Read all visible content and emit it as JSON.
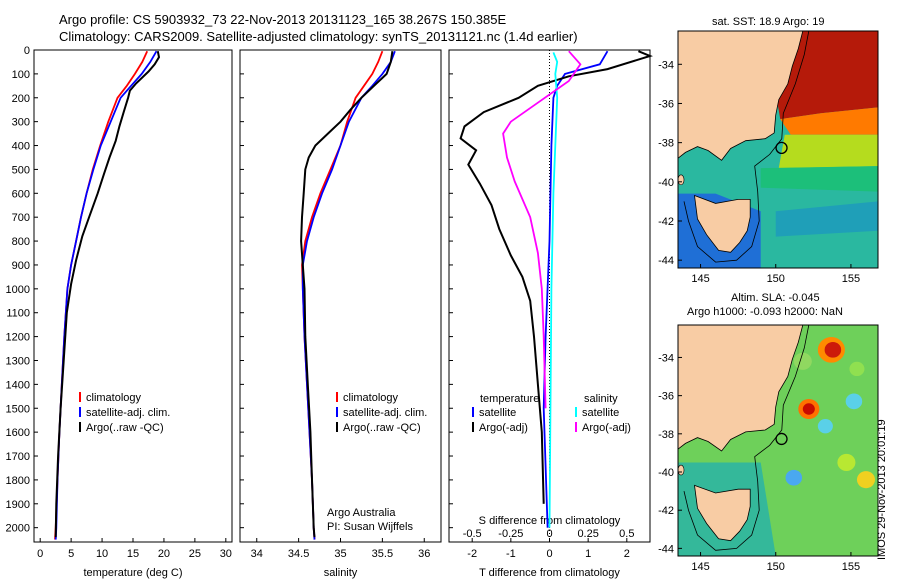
{
  "title": {
    "line1": "Argo profile: CS 5903932_73 22-Nov-2013 20131123_165 38.267S 150.385E",
    "line2": "Climatology: CARS2009. Satellite-adjusted climatology: synTS_20131121.nc (1.4d earlier)"
  },
  "footer_vertical": "IMOS 29-Nov-2013 20:01:19",
  "chart_data": [
    {
      "type": "line",
      "panel": "temperature",
      "xlabel": "temperature (deg C)",
      "ylabel": "",
      "xlim": [
        -1,
        31
      ],
      "ylim": [
        2060,
        0
      ],
      "xticks": [
        "0",
        "5",
        "10",
        "15",
        "20",
        "25",
        "30"
      ],
      "yticks": [
        "0",
        "100",
        "200",
        "300",
        "400",
        "500",
        "600",
        "700",
        "800",
        "900",
        "1000",
        "1100",
        "1200",
        "1300",
        "1400",
        "1500",
        "1600",
        "1700",
        "1800",
        "1900",
        "2000"
      ],
      "legend": [
        "climatology",
        "satellite-adj. clim.",
        "Argo(..raw -QC)"
      ],
      "colors": {
        "climatology": "#ff0000",
        "satellite": "#0000ff",
        "argo": "#000000"
      },
      "series": [
        {
          "name": "climatology",
          "points": [
            [
              17.3,
              5
            ],
            [
              16.5,
              50
            ],
            [
              15.3,
              100
            ],
            [
              14,
              150
            ],
            [
              12.5,
              200
            ],
            [
              11,
              300
            ],
            [
              9.7,
              400
            ],
            [
              8.5,
              500
            ],
            [
              7.5,
              600
            ],
            [
              6.6,
              700
            ],
            [
              5.8,
              800
            ],
            [
              5,
              900
            ],
            [
              4.4,
              1000
            ],
            [
              3.9,
              1200
            ],
            [
              3.5,
              1400
            ],
            [
              3.1,
              1600
            ],
            [
              2.8,
              1800
            ],
            [
              2.5,
              2000
            ],
            [
              2.4,
              2050
            ]
          ]
        },
        {
          "name": "satellite-adj. clim.",
          "points": [
            [
              18.8,
              5
            ],
            [
              17.8,
              50
            ],
            [
              16.4,
              100
            ],
            [
              14.7,
              150
            ],
            [
              13,
              200
            ],
            [
              11.4,
              300
            ],
            [
              9.8,
              400
            ],
            [
              8.6,
              500
            ],
            [
              7.5,
              600
            ],
            [
              6.6,
              700
            ],
            [
              5.8,
              800
            ],
            [
              5,
              900
            ],
            [
              4.4,
              1000
            ],
            [
              3.9,
              1200
            ],
            [
              3.5,
              1400
            ],
            [
              3.1,
              1600
            ],
            [
              2.8,
              1800
            ],
            [
              2.6,
              2000
            ],
            [
              2.5,
              2050
            ]
          ]
        },
        {
          "name": "Argo(..raw -QC)",
          "points": [
            [
              19,
              5
            ],
            [
              19.2,
              30
            ],
            [
              18.5,
              60
            ],
            [
              17.5,
              90
            ],
            [
              15.5,
              140
            ],
            [
              14.5,
              170
            ],
            [
              14.2,
              200
            ],
            [
              13.5,
              260
            ],
            [
              12.8,
              320
            ],
            [
              12.2,
              380
            ],
            [
              11.2,
              450
            ],
            [
              10.3,
              520
            ],
            [
              9.3,
              600
            ],
            [
              7.9,
              700
            ],
            [
              6.8,
              780
            ],
            [
              5.8,
              880
            ],
            [
              5,
              980
            ],
            [
              4.3,
              1100
            ],
            [
              3.8,
              1300
            ],
            [
              3.3,
              1500
            ],
            [
              2.9,
              1700
            ],
            [
              2.6,
              1900
            ],
            [
              2.5,
              2040
            ]
          ]
        }
      ]
    },
    {
      "type": "line",
      "panel": "salinity",
      "xlabel": "salinity",
      "xlim": [
        33.8,
        36.2
      ],
      "ylim": [
        2060,
        0
      ],
      "xticks": [
        "34",
        "34.5",
        "35",
        "35.5",
        "36"
      ],
      "legend": [
        "climatology",
        "satellite-adj. clim.",
        "Argo(..raw -QC)"
      ],
      "annotation": [
        "Argo Australia",
        "PI: Susan Wijffels"
      ],
      "series": [
        {
          "name": "climatology",
          "points": [
            [
              35.5,
              5
            ],
            [
              35.45,
              50
            ],
            [
              35.38,
              100
            ],
            [
              35.28,
              150
            ],
            [
              35.18,
              200
            ],
            [
              35.08,
              300
            ],
            [
              35,
              400
            ],
            [
              34.88,
              500
            ],
            [
              34.76,
              600
            ],
            [
              34.66,
              700
            ],
            [
              34.58,
              800
            ],
            [
              34.54,
              900
            ],
            [
              34.55,
              1000
            ],
            [
              34.57,
              1200
            ],
            [
              34.6,
              1400
            ],
            [
              34.63,
              1600
            ],
            [
              34.66,
              1800
            ],
            [
              34.68,
              2000
            ],
            [
              34.69,
              2050
            ]
          ]
        },
        {
          "name": "satellite-adj. clim.",
          "points": [
            [
              35.65,
              5
            ],
            [
              35.6,
              50
            ],
            [
              35.5,
              100
            ],
            [
              35.38,
              150
            ],
            [
              35.25,
              200
            ],
            [
              35.1,
              300
            ],
            [
              35,
              400
            ],
            [
              34.9,
              500
            ],
            [
              34.78,
              600
            ],
            [
              34.68,
              700
            ],
            [
              34.6,
              800
            ],
            [
              34.55,
              900
            ],
            [
              34.55,
              1000
            ],
            [
              34.57,
              1200
            ],
            [
              34.6,
              1400
            ],
            [
              34.63,
              1600
            ],
            [
              34.66,
              1800
            ],
            [
              34.68,
              2000
            ],
            [
              34.69,
              2050
            ]
          ]
        },
        {
          "name": "Argo(..raw -QC)",
          "points": [
            [
              35.62,
              5
            ],
            [
              35.6,
              50
            ],
            [
              35.55,
              100
            ],
            [
              35.4,
              150
            ],
            [
              35.25,
              200
            ],
            [
              35.12,
              250
            ],
            [
              35.0,
              300
            ],
            [
              34.85,
              350
            ],
            [
              34.7,
              400
            ],
            [
              34.62,
              450
            ],
            [
              34.58,
              500
            ],
            [
              34.56,
              600
            ],
            [
              34.54,
              700
            ],
            [
              34.53,
              800
            ],
            [
              34.55,
              900
            ],
            [
              34.57,
              1000
            ],
            [
              34.58,
              1200
            ],
            [
              34.61,
              1400
            ],
            [
              34.64,
              1600
            ],
            [
              34.66,
              1800
            ],
            [
              34.68,
              2000
            ],
            [
              34.69,
              2040
            ]
          ]
        }
      ]
    },
    {
      "type": "line",
      "panel": "difference",
      "xlabel": "T difference from climatology",
      "xlabel_top": "S difference from climatology",
      "xlim": [
        -2.6,
        2.6
      ],
      "ylim": [
        2060,
        0
      ],
      "xticks": [
        "-2",
        "-1",
        "0",
        "1",
        "2"
      ],
      "xticks_s": [
        "-0.5",
        "-0.25",
        "0",
        "0.25",
        "0.5"
      ],
      "legend_left": {
        "header": "temperature",
        "items": [
          "satellite",
          "Argo(-adj)"
        ]
      },
      "legend_right": {
        "header": "salinity",
        "items": [
          "satellite",
          "Argo(-adj)"
        ]
      },
      "colors": {
        "t_sat": "#0000ff",
        "t_argo": "#000000",
        "s_sat": "#00ffff",
        "s_argo": "#ff00ff"
      },
      "series": [
        {
          "name": "temperature satellite",
          "points": [
            [
              1.5,
              5
            ],
            [
              1.3,
              60
            ],
            [
              0.4,
              100
            ],
            [
              0.2,
              150
            ],
            [
              0.1,
              200
            ],
            [
              0.05,
              400
            ],
            [
              0,
              800
            ],
            [
              -0.1,
              1200
            ],
            [
              -0.15,
              1500
            ],
            [
              -0.05,
              2000
            ]
          ]
        },
        {
          "name": "temperature Argo(-adj)",
          "points": [
            [
              2.3,
              5
            ],
            [
              2.6,
              25
            ],
            [
              1.5,
              80
            ],
            [
              0.5,
              110
            ],
            [
              -0.3,
              150
            ],
            [
              -0.8,
              200
            ],
            [
              -1.7,
              260
            ],
            [
              -2.2,
              320
            ],
            [
              -2.3,
              370
            ],
            [
              -1.9,
              420
            ],
            [
              -2.1,
              480
            ],
            [
              -1.8,
              560
            ],
            [
              -1.5,
              650
            ],
            [
              -1.3,
              750
            ],
            [
              -1.0,
              860
            ],
            [
              -0.7,
              950
            ],
            [
              -0.5,
              1050
            ],
            [
              -0.4,
              1200
            ],
            [
              -0.3,
              1400
            ],
            [
              -0.2,
              1600
            ],
            [
              -0.15,
              1900
            ]
          ]
        },
        {
          "name": "salinity satellite",
          "points": [
            [
              0.1,
              10
            ],
            [
              0.2,
              50
            ],
            [
              0.15,
              100
            ],
            [
              0.2,
              200
            ],
            [
              0.15,
              400
            ],
            [
              0.1,
              600
            ],
            [
              0.05,
              1000
            ],
            [
              0,
              2000
            ]
          ]
        },
        {
          "name": "salinity Argo(-adj)",
          "points": [
            [
              0.5,
              5
            ],
            [
              0.8,
              60
            ],
            [
              0.5,
              130
            ],
            [
              -1.0,
              300
            ],
            [
              -1.2,
              350
            ],
            [
              -1.1,
              450
            ],
            [
              -0.9,
              550
            ],
            [
              -0.5,
              700
            ],
            [
              -0.3,
              850
            ],
            [
              -0.2,
              1000
            ],
            [
              -0.15,
              1200
            ],
            [
              -0.1,
              1500
            ]
          ]
        }
      ]
    },
    {
      "type": "heatmap",
      "panel": "sst-map",
      "title": "sat. SST: 18.9 Argo: 19",
      "xticks": [
        "145",
        "150",
        "155"
      ],
      "yticks": [
        "-34",
        "-36",
        "-38",
        "-40",
        "-42",
        "-44"
      ],
      "xlim": [
        143.5,
        156.8
      ],
      "ylim": [
        -44.4,
        -32.3
      ],
      "argo_position": [
        150.385,
        -38.267
      ]
    },
    {
      "type": "heatmap",
      "panel": "sla-map",
      "title": "Altim. SLA: -0.045",
      "subtitle": "Argo h1000: -0.093 h2000: NaN",
      "xticks": [
        "145",
        "150",
        "155"
      ],
      "yticks": [
        "-34",
        "-36",
        "-38",
        "-40",
        "-42",
        "-44"
      ],
      "xlim": [
        143.5,
        156.8
      ],
      "ylim": [
        -44.4,
        -32.3
      ],
      "argo_position": [
        150.385,
        -38.267
      ]
    }
  ]
}
